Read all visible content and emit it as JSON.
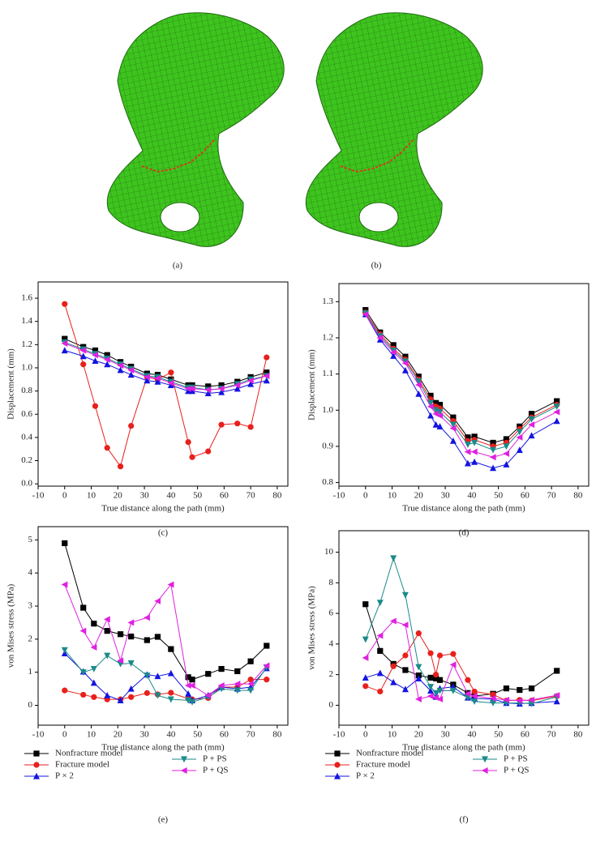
{
  "images": [
    {
      "caption": "(a)"
    },
    {
      "caption": "(b)"
    }
  ],
  "chart_data": [
    {
      "type": "line",
      "caption": "(c)",
      "xlabel": "True distance along the path (mm)",
      "ylabel": "Displacement (mm)",
      "x": [
        0,
        7,
        11.5,
        16,
        21,
        25,
        31,
        35,
        40,
        46.5,
        48,
        54,
        59,
        65,
        70,
        76
      ],
      "xlim": [
        -10,
        84
      ],
      "xticks": [
        -10,
        0,
        10,
        20,
        30,
        40,
        50,
        60,
        70,
        80
      ],
      "ylim": [
        -0.02,
        1.74
      ],
      "yticks": [
        {
          "value": 0,
          "label": "0.0"
        },
        0.2,
        0.4,
        0.6,
        0.8,
        {
          "value": 1,
          "label": "1.0"
        },
        1.2,
        1.4,
        1.6
      ],
      "series": [
        {
          "name": "Nonfracture model",
          "color": "#000000",
          "marker": "square",
          "values": [
            1.25,
            1.18,
            1.15,
            1.11,
            1.05,
            1.01,
            0.95,
            0.94,
            0.9,
            0.85,
            0.85,
            0.84,
            0.85,
            0.88,
            0.92,
            0.96
          ]
        },
        {
          "name": "Fracture model",
          "color": "#e8201c",
          "marker": "circle",
          "values": [
            1.55,
            1.03,
            0.67,
            0.31,
            0.15,
            0.5,
            0.92,
            0.9,
            0.96,
            0.36,
            0.23,
            0.28,
            0.51,
            0.52,
            0.49,
            1.09
          ]
        },
        {
          "name": "P × 2",
          "color": "#1414e0",
          "marker": "triangle-up",
          "values": [
            1.15,
            1.1,
            1.06,
            1.03,
            0.98,
            0.94,
            0.89,
            0.88,
            0.85,
            0.8,
            0.8,
            0.78,
            0.79,
            0.82,
            0.86,
            0.89
          ]
        },
        {
          "name": "P + PS",
          "color": "#1a8a8a",
          "marker": "triangle-down",
          "values": [
            1.22,
            1.16,
            1.12,
            1.08,
            1.03,
            0.99,
            0.93,
            0.92,
            0.88,
            0.83,
            0.83,
            0.81,
            0.82,
            0.86,
            0.9,
            0.93
          ]
        },
        {
          "name": "P + QS",
          "color": "#e020e0",
          "marker": "triangle-left",
          "values": [
            1.21,
            1.15,
            1.11,
            1.07,
            1.02,
            0.98,
            0.92,
            0.91,
            0.87,
            0.82,
            0.82,
            0.81,
            0.82,
            0.85,
            0.89,
            0.93
          ]
        }
      ]
    },
    {
      "type": "line",
      "caption": "(d)",
      "xlabel": "True distance along the path (mm)",
      "ylabel": "Displacement (mm)",
      "x": [
        0,
        5.5,
        10.5,
        15,
        20,
        24.5,
        26.5,
        28,
        33,
        38.5,
        41,
        48,
        53,
        58,
        62.5,
        72
      ],
      "xlim": [
        -10,
        84
      ],
      "xticks": [
        -10,
        0,
        10,
        20,
        30,
        40,
        50,
        60,
        70,
        80
      ],
      "ylim": [
        0.79,
        1.35
      ],
      "yticks": [
        0.8,
        0.9,
        {
          "value": 1,
          "label": "1.0"
        },
        1.1,
        1.2,
        1.3
      ],
      "series": [
        {
          "name": "Nonfracture model",
          "color": "#000000",
          "marker": "square",
          "values": [
            1.277,
            1.215,
            1.18,
            1.148,
            1.093,
            1.04,
            1.02,
            1.015,
            0.98,
            0.925,
            0.927,
            0.91,
            0.92,
            0.955,
            0.99,
            1.025
          ]
        },
        {
          "name": "Fracture model",
          "color": "#e8201c",
          "marker": "circle",
          "values": [
            1.27,
            1.21,
            1.17,
            1.14,
            1.085,
            1.03,
            1.01,
            1.005,
            0.97,
            0.915,
            0.918,
            0.9,
            0.91,
            0.948,
            0.98,
            1.015
          ]
        },
        {
          "name": "P × 2",
          "color": "#1414e0",
          "marker": "triangle-up",
          "values": [
            1.265,
            1.195,
            1.15,
            1.11,
            1.045,
            0.985,
            0.96,
            0.955,
            0.915,
            0.853,
            0.857,
            0.84,
            0.85,
            0.89,
            0.93,
            0.97
          ]
        },
        {
          "name": "P + PS",
          "color": "#1a8a8a",
          "marker": "triangle-down",
          "values": [
            1.268,
            1.205,
            1.165,
            1.135,
            1.08,
            1.02,
            1,
            0.995,
            0.96,
            0.905,
            0.91,
            0.89,
            0.9,
            0.94,
            0.975,
            1.01
          ]
        },
        {
          "name": "P + QS",
          "color": "#e020e0",
          "marker": "triangle-left",
          "values": [
            1.265,
            1.2,
            1.16,
            1.13,
            1.07,
            1.01,
            0.99,
            0.985,
            0.95,
            0.885,
            0.885,
            0.87,
            0.88,
            0.925,
            0.96,
            0.995
          ]
        }
      ]
    },
    {
      "type": "line",
      "caption": "(e)",
      "xlabel": "True distance along the path (mm)",
      "ylabel": "von Mises stress (MPa)",
      "legend": "bottom",
      "x": [
        0,
        7,
        11,
        16,
        21,
        25,
        31,
        35,
        40,
        46.5,
        48,
        54,
        59,
        65,
        70,
        76
      ],
      "xlim": [
        -10,
        84
      ],
      "xticks": [
        -10,
        0,
        10,
        20,
        30,
        40,
        50,
        60,
        70,
        80
      ],
      "ylim": [
        -0.6,
        5.4
      ],
      "yticks": [
        0,
        1,
        2,
        3,
        4,
        5
      ],
      "series": [
        {
          "name": "Nonfracture model",
          "color": "#000000",
          "marker": "square",
          "values": [
            4.9,
            2.95,
            2.47,
            2.25,
            2.15,
            2.08,
            1.97,
            2.07,
            1.7,
            0.85,
            0.78,
            0.95,
            1.1,
            1.03,
            1.33,
            1.8
          ]
        },
        {
          "name": "Fracture model",
          "color": "#e8201c",
          "marker": "circle",
          "values": [
            0.45,
            0.32,
            0.25,
            0.18,
            0.18,
            0.25,
            0.37,
            0.33,
            0.38,
            0.2,
            0.18,
            0.22,
            0.55,
            0.55,
            0.78,
            0.78
          ]
        },
        {
          "name": "P × 2",
          "color": "#1414e0",
          "marker": "triangle-up",
          "values": [
            1.57,
            1.02,
            0.68,
            0.3,
            0.15,
            0.5,
            0.93,
            0.88,
            0.97,
            0.35,
            0.15,
            0.3,
            0.55,
            0.5,
            0.55,
            1.12
          ]
        },
        {
          "name": "P + PS",
          "color": "#1a8a8a",
          "marker": "triangle-down",
          "values": [
            1.67,
            1,
            1.1,
            1.5,
            1.25,
            1.27,
            0.9,
            0.3,
            0.18,
            0.15,
            0.1,
            0.25,
            0.5,
            0.45,
            0.45,
            1.15
          ]
        },
        {
          "name": "P + QS",
          "color": "#e020e0",
          "marker": "triangle-left",
          "values": [
            3.65,
            2.25,
            1.75,
            2.6,
            1.35,
            2.5,
            2.65,
            3.15,
            3.65,
            0.6,
            0.6,
            0.3,
            0.6,
            0.65,
            0.65,
            1.2
          ]
        }
      ]
    },
    {
      "type": "line",
      "caption": "(f)",
      "xlabel": "True distance along the path (mm)",
      "ylabel": "von Mises stress (MPa)",
      "legend": "bottom",
      "x": [
        0,
        5.5,
        10.5,
        15,
        20,
        24.5,
        26.5,
        28,
        33,
        38.5,
        41,
        48,
        53,
        58,
        62.5,
        72
      ],
      "xlim": [
        -10,
        84
      ],
      "xticks": [
        -10,
        0,
        10,
        20,
        30,
        40,
        50,
        60,
        70,
        80
      ],
      "ylim": [
        -1.3,
        11.4
      ],
      "yticks": [
        0,
        2,
        4,
        6,
        8,
        10
      ],
      "series": [
        {
          "name": "Nonfracture model",
          "color": "#000000",
          "marker": "square",
          "values": [
            6.6,
            3.55,
            2.7,
            2.3,
            1.95,
            1.8,
            1.75,
            1.65,
            1.35,
            0.8,
            0.6,
            0.75,
            1.1,
            1,
            1.1,
            2.25
          ]
        },
        {
          "name": "Fracture model",
          "color": "#e8201c",
          "marker": "circle",
          "values": [
            1.25,
            0.9,
            2.55,
            3.25,
            4.7,
            3.4,
            2,
            3.25,
            3.35,
            1.65,
            0.9,
            0.7,
            0.3,
            0.35,
            0.3,
            0.6
          ]
        },
        {
          "name": "P × 2",
          "color": "#1414e0",
          "marker": "triangle-up",
          "values": [
            1.8,
            2.1,
            1.5,
            1.05,
            1.75,
            0.95,
            0.55,
            1.1,
            1.2,
            0.5,
            0.45,
            0.4,
            0.15,
            0.1,
            0.15,
            0.25
          ]
        },
        {
          "name": "P + PS",
          "color": "#1a8a8a",
          "marker": "triangle-down",
          "values": [
            4.3,
            6.7,
            9.6,
            7.2,
            2.5,
            1.2,
            0.8,
            0.95,
            0.95,
            0.5,
            0.25,
            0.15,
            0.15,
            0.15,
            0.1,
            0.55
          ]
        },
        {
          "name": "P + QS",
          "color": "#e020e0",
          "marker": "triangle-left",
          "values": [
            3.1,
            4.55,
            5.5,
            5.25,
            0.4,
            0.6,
            0.5,
            0.4,
            2.65,
            0.75,
            0.6,
            0.45,
            0.35,
            0.3,
            0.35,
            0.65
          ]
        }
      ]
    }
  ]
}
